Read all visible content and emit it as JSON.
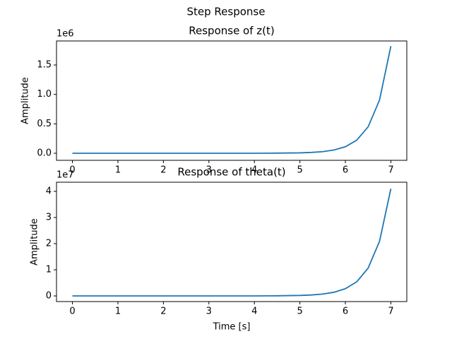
{
  "figure_title": "Step Response",
  "chart_data": [
    {
      "type": "line",
      "title": "Response of z(t)",
      "y_label": "Amplitude",
      "y_offset_label": "1e6",
      "x": [
        0,
        1,
        2,
        3,
        4,
        4.5,
        5,
        5.25,
        5.5,
        5.75,
        6,
        6.25,
        6.5,
        6.75,
        7
      ],
      "series": [
        {
          "name": "z(t)",
          "color": "#1f77b4",
          "values": [
            0,
            0,
            0,
            0,
            0.0004,
            0.002,
            0.007,
            0.014,
            0.027,
            0.055,
            0.111,
            0.223,
            0.449,
            0.904,
            1.82
          ]
        }
      ],
      "xlim": [
        -0.35,
        7.35
      ],
      "ylim": [
        -0.12,
        1.908
      ],
      "xticks": [
        0,
        1,
        2,
        3,
        4,
        5,
        6,
        7
      ],
      "yticks": [
        {
          "value": 0,
          "label": "0.0"
        },
        {
          "value": 0.5,
          "label": "0.5"
        },
        {
          "value": 1,
          "label": "1.0"
        },
        {
          "value": 1.5,
          "label": "1.5"
        }
      ]
    },
    {
      "type": "line",
      "title": "Response of theta(t)",
      "x_label": "Time [s]",
      "y_label": "Amplitude",
      "y_offset_label": "1e7",
      "x": [
        0,
        1,
        2,
        3,
        4,
        4.5,
        5,
        5.25,
        5.5,
        5.75,
        6,
        6.25,
        6.5,
        6.75,
        7
      ],
      "series": [
        {
          "name": "theta(t)",
          "color": "#1f77b4",
          "values": [
            0,
            0,
            0,
            0,
            0.001,
            0.005,
            0.019,
            0.036,
            0.071,
            0.14,
            0.276,
            0.541,
            1.063,
            2.087,
            4.1
          ]
        }
      ],
      "xlim": [
        -0.35,
        7.35
      ],
      "ylim": [
        -0.216,
        4.35
      ],
      "xticks": [
        0,
        1,
        2,
        3,
        4,
        5,
        6,
        7
      ],
      "yticks": [
        0,
        1,
        2,
        3,
        4
      ]
    }
  ]
}
